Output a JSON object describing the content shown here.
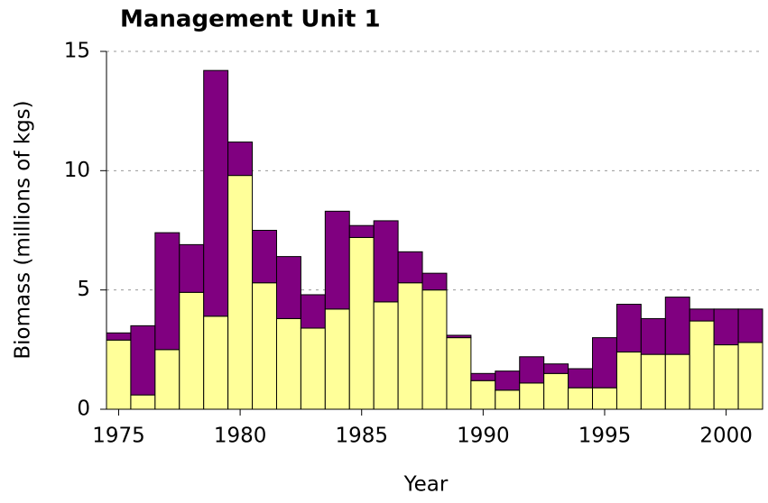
{
  "chart_data": {
    "type": "stacked_bar",
    "title": "Management Unit 1",
    "x_label": "Year",
    "y_label": "Biomass (millions of kgs)",
    "x": [
      1975,
      1976,
      1977,
      1978,
      1979,
      1980,
      1981,
      1982,
      1983,
      1984,
      1985,
      1986,
      1987,
      1988,
      1989,
      1990,
      1991,
      1992,
      1993,
      1994,
      1995,
      1996,
      1997,
      1998,
      1999,
      2000,
      2001
    ],
    "series": [
      {
        "color": "#ffff99",
        "values": [
          2.9,
          0.6,
          2.5,
          4.9,
          3.9,
          9.8,
          5.3,
          3.8,
          3.4,
          4.2,
          7.2,
          4.5,
          5.3,
          5.0,
          3.0,
          1.2,
          0.8,
          1.1,
          1.5,
          0.9,
          0.9,
          2.4,
          2.3,
          2.3,
          3.7,
          2.7,
          2.8
        ]
      },
      {
        "color": "#800080",
        "values": [
          0.3,
          2.9,
          4.9,
          2.0,
          10.3,
          1.4,
          2.2,
          2.6,
          1.4,
          4.1,
          0.5,
          3.4,
          1.3,
          0.7,
          0.1,
          0.3,
          0.8,
          1.1,
          0.4,
          0.8,
          2.1,
          2.0,
          1.5,
          2.4,
          0.5,
          1.5,
          1.4
        ]
      }
    ],
    "xlim": [
      1974.5,
      2001.5
    ],
    "xticks": [
      1975,
      1980,
      1985,
      1990,
      1995,
      2000
    ],
    "ylim": [
      0,
      15
    ],
    "yticks": [
      0,
      5,
      10,
      15
    ],
    "grid": true
  }
}
